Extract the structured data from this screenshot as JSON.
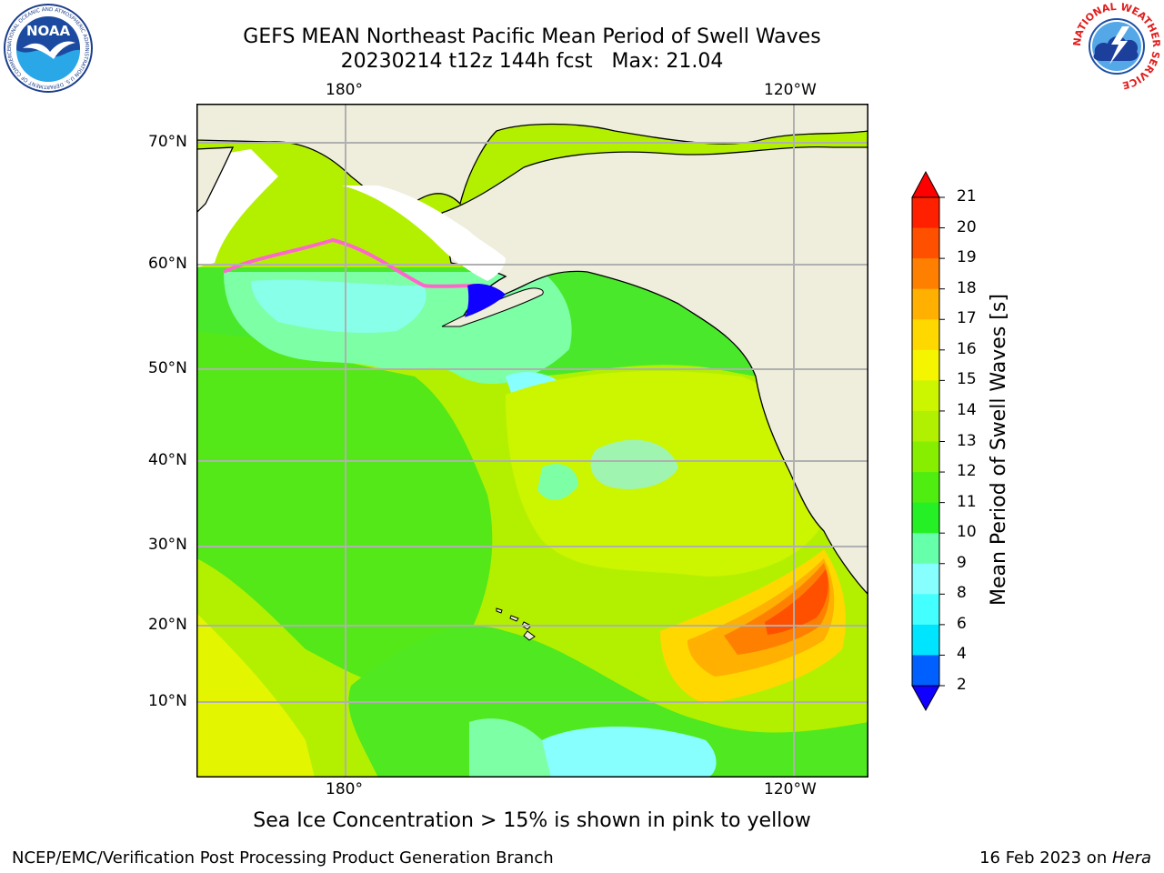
{
  "title": {
    "line1": "GEFS MEAN Northeast Pacific Mean Period of Swell Waves",
    "line2": "20230214 t12z 144h fcst   Max: 21.04"
  },
  "map": {
    "lon_labels_top": [
      "180°",
      "120°W"
    ],
    "lon_labels_bottom": [
      "180°",
      "120°W"
    ],
    "lat_labels": [
      "70°N",
      "60°N",
      "50°N",
      "40°N",
      "30°N",
      "20°N",
      "10°N"
    ],
    "land_color": "#efeddc",
    "sea_ice_color": "#ff66cc"
  },
  "colorbar": {
    "label": "Mean Period of Swell Waves [s]",
    "ticks": [
      "21",
      "20",
      "19",
      "18",
      "17",
      "16",
      "15",
      "14",
      "13",
      "12",
      "11",
      "10",
      "9",
      "8",
      "6",
      "4",
      "2"
    ],
    "colors": [
      "#ff2000",
      "#ff5000",
      "#ff8000",
      "#ffb000",
      "#ffd800",
      "#f5f500",
      "#ccf500",
      "#b0f000",
      "#88ee00",
      "#50ee10",
      "#25f025",
      "#66ffaa",
      "#88ffff",
      "#44ffff",
      "#00e5ff",
      "#0060ff"
    ],
    "over_color": "#ff0000",
    "under_color": "#1000ff"
  },
  "note": "Sea Ice Concentration > 15% is shown in pink to yellow",
  "footer": {
    "left": "NCEP/EMC/Verification Post Processing Product Generation Branch",
    "right_text": "16 Feb 2023 on ",
    "right_italic": "Hera"
  },
  "logos": {
    "noaa": "NOAA",
    "nws_ring": "NATIONAL WEATHER SERVICE",
    "noaa_ring": "NATIONAL OCEANIC AND ATMOSPHERIC ADMINISTRATION  U.S. DEPARTMENT OF COMMERCE"
  }
}
